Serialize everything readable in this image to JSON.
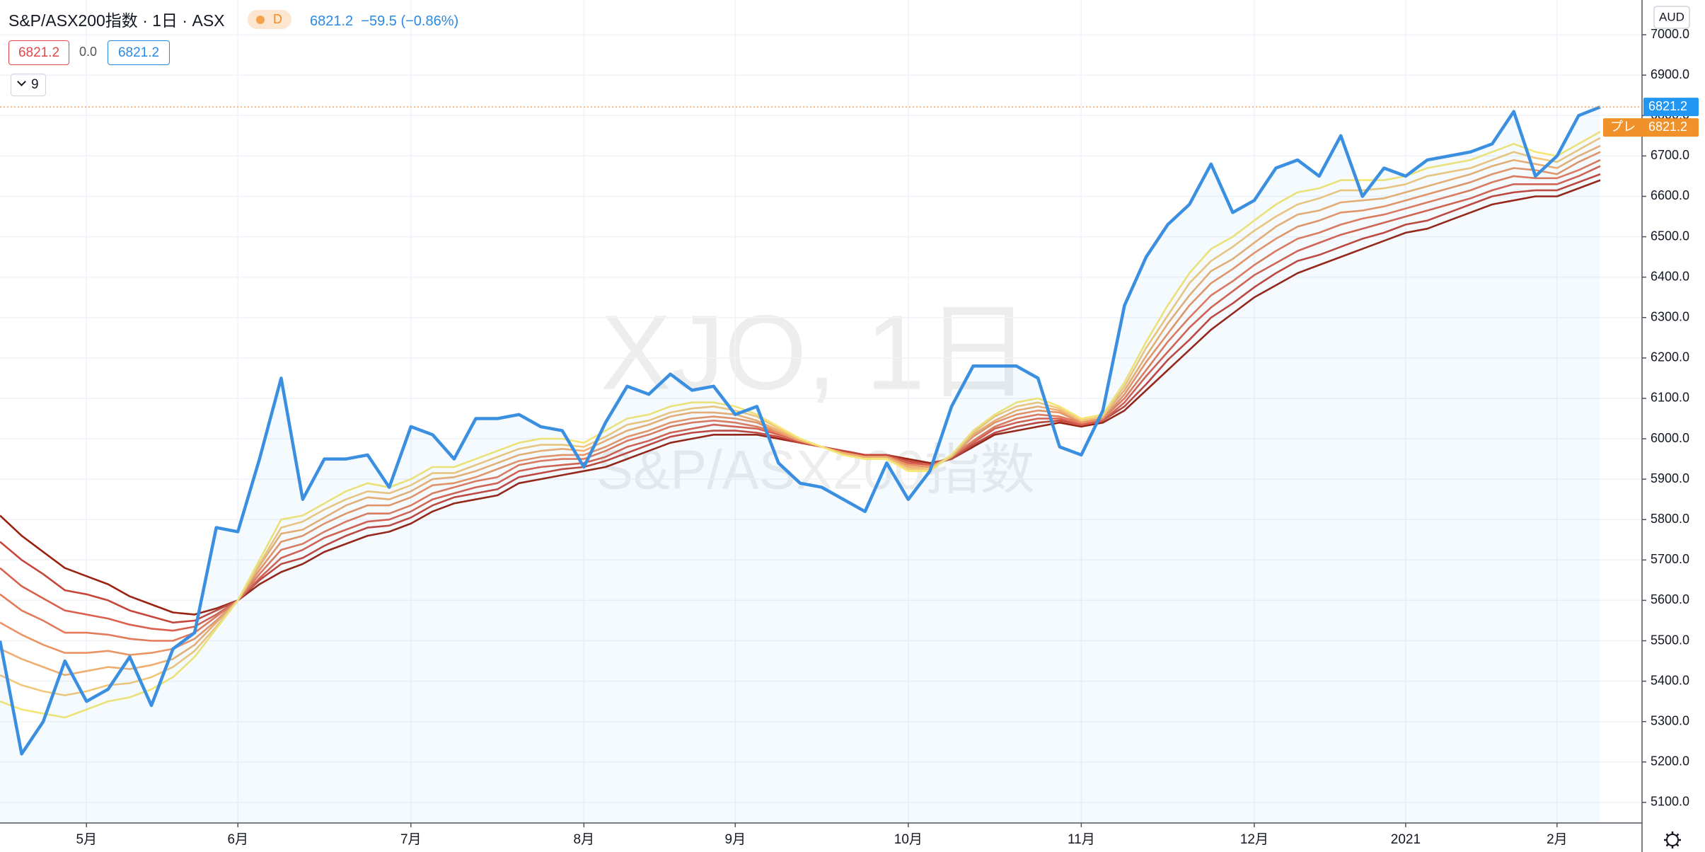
{
  "header": {
    "title": "S&P/ASX200指数 · 1日 · ASX",
    "badge": "D",
    "last": "6821.2",
    "change": "−59.5 (−0.86%)",
    "open_box": "6821.2",
    "spread": "0.0",
    "close_box": "6821.2",
    "ribbon_count": "9"
  },
  "watermark": {
    "symbol": "XJO, 1日",
    "name": "S&P/ASX200指数"
  },
  "chart_data": {
    "type": "line",
    "currency": "AUD",
    "last_price": 6821.2,
    "pre_label": "プレ",
    "grid": true,
    "categories": [
      null,
      null,
      null,
      null,
      "5月",
      null,
      null,
      null,
      null,
      null,
      null,
      "6月",
      null,
      null,
      null,
      null,
      null,
      null,
      null,
      "7月",
      null,
      null,
      null,
      null,
      null,
      null,
      null,
      "8月",
      null,
      null,
      null,
      null,
      null,
      null,
      "9月",
      null,
      null,
      null,
      null,
      null,
      null,
      null,
      "10月",
      null,
      null,
      null,
      null,
      null,
      null,
      null,
      "11月",
      null,
      null,
      null,
      null,
      null,
      null,
      null,
      "12月",
      null,
      null,
      null,
      null,
      null,
      null,
      "2021",
      null,
      null,
      null,
      null,
      null,
      null,
      "2月",
      null,
      null
    ],
    "ylim": [
      5049,
      7086
    ],
    "yticks": [
      {
        "value": 5100,
        "label": "5100.0"
      },
      {
        "value": 5200,
        "label": "5200.0"
      },
      {
        "value": 5300,
        "label": "5300.0"
      },
      {
        "value": 5400,
        "label": "5400.0"
      },
      {
        "value": 5500,
        "label": "5500.0"
      },
      {
        "value": 5600,
        "label": "5600.0"
      },
      {
        "value": 5700,
        "label": "5700.0"
      },
      {
        "value": 5800,
        "label": "5800.0"
      },
      {
        "value": 5900,
        "label": "5900.0"
      },
      {
        "value": 6000,
        "label": "6000.0"
      },
      {
        "value": 6100,
        "label": "6100.0"
      },
      {
        "value": 6200,
        "label": "6200.0"
      },
      {
        "value": 6300,
        "label": "6300.0"
      },
      {
        "value": 6400,
        "label": "6400.0"
      },
      {
        "value": 6500,
        "label": "6500.0"
      },
      {
        "value": 6600,
        "label": "6600.0"
      },
      {
        "value": 6700,
        "label": "6700.0"
      },
      {
        "value": 6800,
        "label": "6800.0"
      },
      {
        "value": 6900,
        "label": "6900.0"
      },
      {
        "value": 7000,
        "label": "7000.0"
      }
    ],
    "series": [
      {
        "color": "#9a2210",
        "values": [
          5810,
          5760,
          5720,
          5680,
          5660,
          5640,
          5610,
          5590,
          5570,
          5565,
          5580,
          5600,
          5640,
          5670,
          5690,
          5720,
          5740,
          5760,
          5770,
          5790,
          5820,
          5840,
          5850,
          5860,
          5890,
          5900,
          5910,
          5920,
          5930,
          5950,
          5970,
          5990,
          6000,
          6010,
          6010,
          6010,
          6000,
          5990,
          5980,
          5970,
          5960,
          5960,
          5950,
          5940,
          5950,
          5980,
          6010,
          6020,
          6030,
          6040,
          6030,
          6040,
          6070,
          6120,
          6170,
          6220,
          6270,
          6310,
          6350,
          6380,
          6410,
          6430,
          6450,
          6470,
          6490,
          6510,
          6520,
          6540,
          6560,
          6580,
          6590,
          6600,
          6600,
          6620,
          6640
        ]
      },
      {
        "color": "#c5463a",
        "values": [
          5745,
          5700,
          5665,
          5625,
          5615,
          5600,
          5575,
          5560,
          5545,
          5550,
          5575,
          5600,
          5650,
          5690,
          5705,
          5735,
          5760,
          5780,
          5785,
          5805,
          5835,
          5855,
          5865,
          5875,
          5905,
          5915,
          5925,
          5930,
          5945,
          5965,
          5985,
          6005,
          6015,
          6020,
          6020,
          6015,
          6005,
          5990,
          5980,
          5970,
          5960,
          5960,
          5945,
          5935,
          5950,
          5985,
          6015,
          6030,
          6040,
          6045,
          6035,
          6045,
          6080,
          6135,
          6195,
          6245,
          6300,
          6335,
          6375,
          6410,
          6440,
          6455,
          6475,
          6495,
          6510,
          6530,
          6540,
          6560,
          6580,
          6600,
          6610,
          6615,
          6615,
          6635,
          6655
        ]
      },
      {
        "color": "#d9604c",
        "values": [
          5680,
          5635,
          5605,
          5575,
          5565,
          5555,
          5540,
          5530,
          5525,
          5535,
          5565,
          5600,
          5655,
          5705,
          5725,
          5755,
          5775,
          5795,
          5800,
          5820,
          5850,
          5865,
          5880,
          5890,
          5920,
          5930,
          5935,
          5940,
          5955,
          5980,
          5995,
          6015,
          6025,
          6035,
          6030,
          6025,
          6010,
          5995,
          5980,
          5965,
          5955,
          5955,
          5940,
          5935,
          5955,
          5990,
          6025,
          6040,
          6050,
          6050,
          6035,
          6045,
          6090,
          6155,
          6215,
          6275,
          6325,
          6365,
          6405,
          6435,
          6465,
          6485,
          6505,
          6520,
          6535,
          6550,
          6565,
          6580,
          6595,
          6615,
          6630,
          6630,
          6630,
          6650,
          6675
        ]
      },
      {
        "color": "#e37a5a",
        "values": [
          5615,
          5575,
          5550,
          5520,
          5520,
          5515,
          5505,
          5500,
          5500,
          5520,
          5560,
          5600,
          5665,
          5725,
          5740,
          5770,
          5795,
          5815,
          5815,
          5835,
          5865,
          5880,
          5895,
          5905,
          5935,
          5945,
          5950,
          5950,
          5970,
          5995,
          6010,
          6030,
          6040,
          6045,
          6040,
          6030,
          6015,
          5995,
          5980,
          5965,
          5955,
          5955,
          5935,
          5930,
          5955,
          5995,
          6030,
          6050,
          6060,
          6055,
          6040,
          6050,
          6100,
          6170,
          6240,
          6300,
          6355,
          6390,
          6430,
          6465,
          6495,
          6510,
          6530,
          6545,
          6555,
          6570,
          6585,
          6600,
          6615,
          6635,
          6650,
          6645,
          6645,
          6665,
          6690
        ]
      },
      {
        "color": "#e99464",
        "values": [
          5545,
          5515,
          5490,
          5470,
          5470,
          5475,
          5465,
          5470,
          5480,
          5505,
          5550,
          5600,
          5675,
          5745,
          5760,
          5790,
          5815,
          5835,
          5835,
          5855,
          5885,
          5890,
          5905,
          5925,
          5945,
          5955,
          5960,
          5960,
          5980,
          6005,
          6020,
          6040,
          6050,
          6055,
          6050,
          6040,
          6015,
          5995,
          5980,
          5965,
          5955,
          5955,
          5935,
          5930,
          5955,
          6005,
          6040,
          6060,
          6070,
          6065,
          6040,
          6050,
          6110,
          6190,
          6260,
          6330,
          6385,
          6420,
          6460,
          6495,
          6525,
          6540,
          6560,
          6565,
          6575,
          6590,
          6605,
          6620,
          6635,
          6655,
          6670,
          6665,
          6655,
          6685,
          6710
        ]
      },
      {
        "color": "#eeae70",
        "values": [
          5480,
          5455,
          5435,
          5415,
          5425,
          5435,
          5430,
          5440,
          5455,
          5490,
          5545,
          5600,
          5685,
          5765,
          5775,
          5805,
          5835,
          5855,
          5850,
          5870,
          5900,
          5905,
          5920,
          5940,
          5960,
          5970,
          5975,
          5970,
          5995,
          6020,
          6035,
          6055,
          6065,
          6065,
          6060,
          6045,
          6020,
          5995,
          5980,
          5965,
          5955,
          5955,
          5930,
          5925,
          5955,
          6010,
          6045,
          6070,
          6080,
          6070,
          6045,
          6055,
          6120,
          6205,
          6285,
          6355,
          6415,
          6445,
          6485,
          6525,
          6555,
          6565,
          6585,
          6590,
          6595,
          6610,
          6625,
          6640,
          6655,
          6675,
          6690,
          6680,
          6670,
          6700,
          6725
        ]
      },
      {
        "color": "#f2c77a",
        "values": [
          5415,
          5390,
          5375,
          5365,
          5375,
          5390,
          5395,
          5410,
          5435,
          5475,
          5535,
          5600,
          5690,
          5780,
          5795,
          5825,
          5850,
          5870,
          5865,
          5885,
          5915,
          5915,
          5935,
          5955,
          5975,
          5985,
          5985,
          5980,
          6005,
          6035,
          6045,
          6065,
          6075,
          6080,
          6070,
          6055,
          6025,
          6000,
          5980,
          5960,
          5950,
          5950,
          5925,
          5925,
          5960,
          6015,
          6055,
          6080,
          6090,
          6075,
          6045,
          6055,
          6130,
          6225,
          6305,
          6385,
          6440,
          6475,
          6515,
          6550,
          6580,
          6595,
          6615,
          6615,
          6620,
          6630,
          6650,
          6660,
          6670,
          6690,
          6710,
          6695,
          6685,
          6715,
          6745
        ]
      },
      {
        "color": "#f5e574",
        "values": [
          5350,
          5330,
          5320,
          5310,
          5330,
          5350,
          5360,
          5380,
          5410,
          5460,
          5530,
          5600,
          5700,
          5800,
          5810,
          5840,
          5870,
          5890,
          5880,
          5900,
          5930,
          5930,
          5950,
          5970,
          5990,
          6000,
          6000,
          5990,
          6020,
          6050,
          6060,
          6080,
          6090,
          6090,
          6080,
          6060,
          6030,
          6000,
          5980,
          5960,
          5950,
          5950,
          5920,
          5920,
          5960,
          6020,
          6060,
          6090,
          6100,
          6080,
          6050,
          6060,
          6140,
          6240,
          6330,
          6410,
          6470,
          6500,
          6540,
          6580,
          6610,
          6620,
          6640,
          6640,
          6640,
          6650,
          6670,
          6680,
          6690,
          6710,
          6730,
          6710,
          6700,
          6730,
          6760
        ]
      },
      {
        "color": "#3a8fe0",
        "area": true,
        "values": [
          5500,
          5220,
          5300,
          5450,
          5350,
          5380,
          5460,
          5340,
          5480,
          5520,
          5780,
          5770,
          5950,
          6150,
          5850,
          5950,
          5950,
          5960,
          5880,
          6030,
          6010,
          5950,
          6050,
          6050,
          6060,
          6030,
          6020,
          5930,
          6040,
          6130,
          6110,
          6160,
          6120,
          6130,
          6060,
          6080,
          5940,
          5890,
          5880,
          5850,
          5820,
          5940,
          5850,
          5920,
          6080,
          6180,
          6180,
          6180,
          6150,
          5980,
          5960,
          6070,
          6330,
          6450,
          6530,
          6580,
          6680,
          6560,
          6590,
          6670,
          6690,
          6650,
          6750,
          6600,
          6670,
          6650,
          6690,
          6700,
          6710,
          6730,
          6810,
          6650,
          6700,
          6800,
          6821.2
        ]
      }
    ]
  }
}
